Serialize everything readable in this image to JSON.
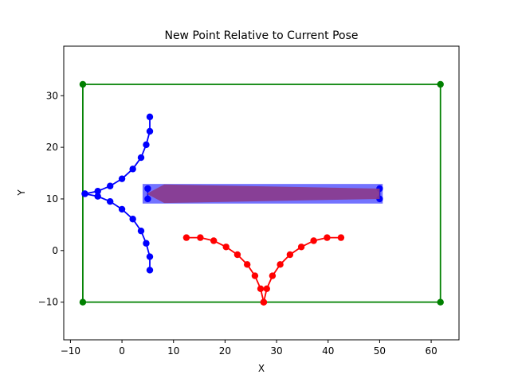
{
  "chart_data": {
    "type": "line",
    "title": "New Point Relative to Current Pose",
    "xlabel": "X",
    "ylabel": "Y",
    "xlim": [
      -11.3,
      65.4
    ],
    "ylim": [
      -17.3,
      39.6
    ],
    "xticks": [
      -10,
      0,
      10,
      20,
      30,
      40,
      50,
      60
    ],
    "yticks": [
      -10,
      0,
      10,
      20,
      30
    ],
    "xtick_labels": [
      "−10",
      "0",
      "10",
      "20",
      "30",
      "40",
      "50",
      "60"
    ],
    "ytick_labels": [
      "−10",
      "0",
      "10",
      "20",
      "30"
    ],
    "grid": false,
    "series": [
      {
        "color": "#008000",
        "marker": "circle",
        "closed": true,
        "x": [
          -7.6,
          61.8,
          61.8,
          -7.6
        ],
        "y": [
          32.2,
          32.2,
          -10.0,
          -10.0
        ]
      },
      {
        "color": "#0000ff",
        "marker": "circle",
        "x": [
          5.4,
          5.4,
          4.7,
          3.7,
          2.1,
          0.0,
          -2.3,
          -4.7,
          -7.2
        ],
        "y": [
          25.9,
          23.1,
          20.5,
          18.0,
          15.8,
          13.9,
          12.5,
          11.5,
          11.0
        ]
      },
      {
        "color": "#0000ff",
        "marker": "circle",
        "x": [
          -7.2,
          -4.7,
          -2.3,
          0.0,
          2.1,
          3.7,
          4.7,
          5.4,
          5.4
        ],
        "y": [
          11.0,
          10.5,
          9.5,
          8.0,
          6.1,
          3.8,
          1.4,
          -1.2,
          -3.8
        ]
      },
      {
        "color": "#ff0000",
        "marker": "circle",
        "x": [
          12.5,
          15.2,
          17.8,
          20.2,
          22.4,
          24.3,
          25.8,
          26.9,
          27.5
        ],
        "y": [
          2.5,
          2.5,
          1.9,
          0.7,
          -0.8,
          -2.7,
          -4.9,
          -7.4,
          -10.0
        ]
      },
      {
        "color": "#ff0000",
        "marker": "circle",
        "x": [
          27.5,
          28.1,
          29.2,
          30.7,
          32.6,
          34.8,
          37.2,
          39.8,
          42.5
        ],
        "y": [
          -10.0,
          -7.4,
          -4.9,
          -2.7,
          -0.8,
          0.7,
          1.9,
          2.5,
          2.5
        ]
      }
    ],
    "overlays": [
      {
        "kind": "rectangle",
        "fill": "#0000ff",
        "alpha": 0.55,
        "x": [
          4.0,
          50.6
        ],
        "y": [
          9.1,
          12.9
        ]
      },
      {
        "kind": "segment-markers",
        "color": "#0000ff",
        "marker": "circle",
        "x": [
          5.0,
          5.0,
          50.0,
          50.0
        ],
        "y": [
          12.0,
          10.0,
          12.0,
          10.0
        ]
      },
      {
        "kind": "arrow",
        "fill": "#8b3a8b",
        "tail_x": 50.0,
        "head_x": 4.8,
        "y": 11.0,
        "half_width": 1.0
      }
    ]
  }
}
